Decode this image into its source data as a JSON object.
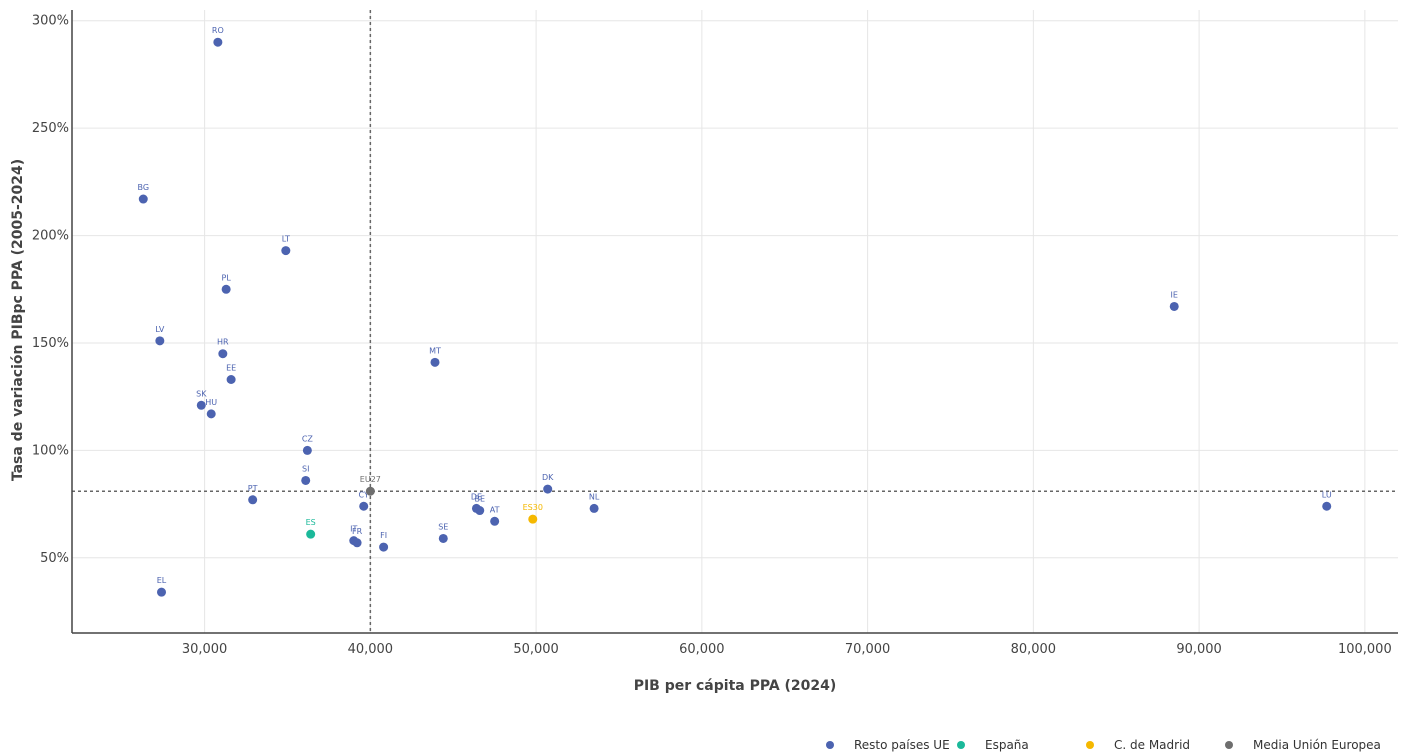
{
  "chart_data": {
    "type": "scatter",
    "xlabel": "PIB per cápita PPA (2024)",
    "ylabel": "Tasa de variación PIBpc PPA (2005-2024)",
    "xlim": [
      22000,
      102000
    ],
    "ylim": [
      15,
      305
    ],
    "x_ticks": [
      30000,
      40000,
      50000,
      60000,
      70000,
      80000,
      90000,
      100000
    ],
    "x_tick_labels": [
      "30,000",
      "40,000",
      "50,000",
      "60,000",
      "70,000",
      "80,000",
      "90,000",
      "100,000"
    ],
    "y_ticks": [
      50,
      100,
      150,
      200,
      250,
      300
    ],
    "y_tick_labels": [
      "50%",
      "100%",
      "150%",
      "200%",
      "250%",
      "300%"
    ],
    "grid": true,
    "reference_lines": {
      "x": 40000,
      "y": 81
    },
    "legend_position": "bottom-right",
    "series": [
      {
        "name": "Resto países UE",
        "color": "#4c63b0",
        "points": [
          {
            "label": "RO",
            "x": 30800,
            "y": 290
          },
          {
            "label": "BG",
            "x": 26300,
            "y": 217
          },
          {
            "label": "LT",
            "x": 34900,
            "y": 193
          },
          {
            "label": "PL",
            "x": 31300,
            "y": 175
          },
          {
            "label": "LV",
            "x": 27300,
            "y": 151
          },
          {
            "label": "HR",
            "x": 31100,
            "y": 145
          },
          {
            "label": "EE",
            "x": 31600,
            "y": 133
          },
          {
            "label": "SK",
            "x": 29800,
            "y": 121
          },
          {
            "label": "HU",
            "x": 30400,
            "y": 117
          },
          {
            "label": "CZ",
            "x": 36200,
            "y": 100
          },
          {
            "label": "SI",
            "x": 36100,
            "y": 86
          },
          {
            "label": "PT",
            "x": 32900,
            "y": 77
          },
          {
            "label": "CY",
            "x": 39600,
            "y": 74
          },
          {
            "label": "IT",
            "x": 39000,
            "y": 58
          },
          {
            "label": "FR",
            "x": 39200,
            "y": 57
          },
          {
            "label": "FI",
            "x": 40800,
            "y": 55
          },
          {
            "label": "EL",
            "x": 27400,
            "y": 34
          },
          {
            "label": "MT",
            "x": 43900,
            "y": 141
          },
          {
            "label": "SE",
            "x": 44400,
            "y": 59
          },
          {
            "label": "DE",
            "x": 46400,
            "y": 73
          },
          {
            "label": "BE",
            "x": 46600,
            "y": 72
          },
          {
            "label": "AT",
            "x": 47500,
            "y": 67
          },
          {
            "label": "DK",
            "x": 50700,
            "y": 82
          },
          {
            "label": "NL",
            "x": 53500,
            "y": 73
          },
          {
            "label": "IE",
            "x": 88500,
            "y": 167
          },
          {
            "label": "LU",
            "x": 97700,
            "y": 74
          }
        ]
      },
      {
        "name": "España",
        "color": "#1bb99a",
        "points": [
          {
            "label": "ES",
            "x": 36400,
            "y": 61
          }
        ]
      },
      {
        "name": "C. de Madrid",
        "color": "#f5b800",
        "points": [
          {
            "label": "ES30",
            "x": 49800,
            "y": 68
          }
        ]
      },
      {
        "name": "Media Unión Europea",
        "color": "#6e6e6e",
        "points": [
          {
            "label": "EU27",
            "x": 40000,
            "y": 81
          }
        ]
      }
    ]
  }
}
